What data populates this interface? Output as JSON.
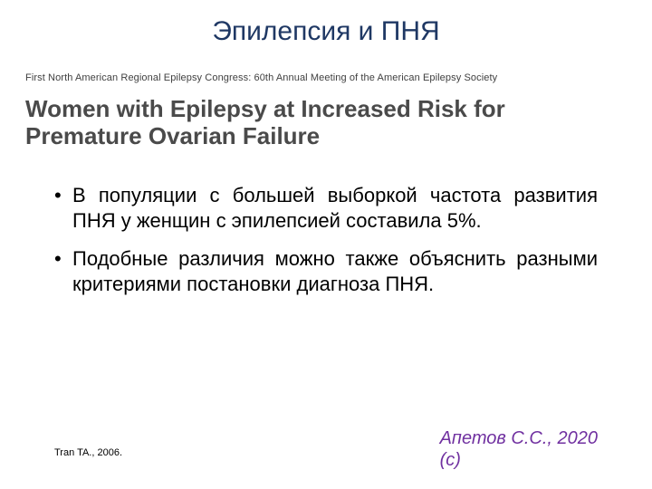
{
  "title": "Эпилепсия и ПНЯ",
  "congress_line": "First North American Regional Epilepsy Congress: 60th Annual Meeting of the American Epilepsy Society",
  "headline": "Women with Epilepsy at Increased Risk for Premature Ovarian Failure",
  "bullets": [
    "В популяции с большей выборкой частота развития ПНЯ у женщин с эпилепсией составила 5%.",
    "Подобные различия можно также объяснить разными критериями постановки диагноза ПНЯ."
  ],
  "ref_left": "Tran TA., 2006.",
  "ref_right_main": "Апетов С.С., 2020",
  "ref_right_sub": "(с)",
  "colors": {
    "title": "#1f3864",
    "headline": "#4a4a4a",
    "body": "#000000",
    "ref_right": "#7030a0",
    "background": "#ffffff"
  },
  "typography": {
    "title_fontsize": 30,
    "congress_fontsize": 11,
    "headline_fontsize": 26,
    "bullet_fontsize": 22,
    "ref_left_fontsize": 11,
    "ref_right_fontsize": 20
  }
}
